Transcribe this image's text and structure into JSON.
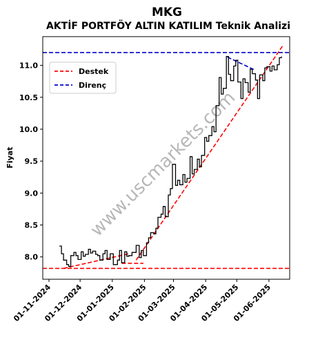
{
  "chart_data": {
    "type": "line",
    "title": "MKG",
    "subtitle": "AKTİF PORTFÖY ALTIN KATILIM Teknik Analizi",
    "xlabel": "",
    "ylabel": "Fiyat",
    "ylim": [
      7.65,
      11.45
    ],
    "xlim": [
      "2024-10-26",
      "2025-06-21"
    ],
    "grid": false,
    "legend_position": "upper-left",
    "watermark": "www.uscmarkets.com",
    "y_ticks": [
      "8.0",
      "8.5",
      "9.0",
      "9.5",
      "10.0",
      "10.5",
      "11.0"
    ],
    "y_tick_values": [
      8.0,
      8.5,
      9.0,
      9.5,
      10.0,
      10.5,
      11.0
    ],
    "x_ticks": [
      "01-11-2024",
      "01-12-2024",
      "01-01-2025",
      "01-02-2025",
      "01-03-2025",
      "01-04-2025",
      "01-05-2025",
      "01-06-2025"
    ],
    "x_tick_dates": [
      "2024-11-01",
      "2024-12-01",
      "2025-01-01",
      "2025-02-01",
      "2025-03-01",
      "2025-04-01",
      "2025-05-01",
      "2025-06-01"
    ],
    "series": [
      {
        "name": "",
        "color": "#000000",
        "x": [
          "2024-11-11",
          "2024-11-13",
          "2024-11-15",
          "2024-11-18",
          "2024-11-20",
          "2024-11-22",
          "2024-11-25",
          "2024-11-27",
          "2024-11-29",
          "2024-12-02",
          "2024-12-04",
          "2024-12-06",
          "2024-12-09",
          "2024-12-11",
          "2024-12-13",
          "2024-12-16",
          "2024-12-18",
          "2024-12-20",
          "2024-12-23",
          "2024-12-25",
          "2024-12-27",
          "2024-12-30",
          "2025-01-02",
          "2025-01-06",
          "2025-01-08",
          "2025-01-10",
          "2025-01-13",
          "2025-01-15",
          "2025-01-17",
          "2025-01-20",
          "2025-01-22",
          "2025-01-24",
          "2025-01-27",
          "2025-01-29",
          "2025-01-31",
          "2025-02-03",
          "2025-02-05",
          "2025-02-07",
          "2025-02-10",
          "2025-02-12",
          "2025-02-14",
          "2025-02-17",
          "2025-02-19",
          "2025-02-21",
          "2025-02-24",
          "2025-02-26",
          "2025-02-28",
          "2025-03-03",
          "2025-03-05",
          "2025-03-07",
          "2025-03-10",
          "2025-03-12",
          "2025-03-14",
          "2025-03-17",
          "2025-03-19",
          "2025-03-21",
          "2025-03-24",
          "2025-03-26",
          "2025-03-28",
          "2025-03-31",
          "2025-04-02",
          "2025-04-04",
          "2025-04-07",
          "2025-04-09",
          "2025-04-11",
          "2025-04-14",
          "2025-04-16",
          "2025-04-18",
          "2025-04-21",
          "2025-04-23",
          "2025-04-25",
          "2025-04-28",
          "2025-04-30",
          "2025-05-02",
          "2025-05-05",
          "2025-05-07",
          "2025-05-09",
          "2025-05-12",
          "2025-05-14",
          "2025-05-16",
          "2025-05-19",
          "2025-05-21",
          "2025-05-23",
          "2025-05-26",
          "2025-05-28",
          "2025-05-30",
          "2025-06-02",
          "2025-06-04",
          "2025-06-06",
          "2025-06-09",
          "2025-06-11",
          "2025-06-13"
        ],
        "y": [
          8.17,
          8.05,
          7.95,
          7.88,
          7.85,
          8.02,
          8.07,
          8.02,
          7.96,
          8.08,
          8.01,
          8.04,
          8.12,
          8.06,
          8.09,
          8.04,
          8.02,
          7.95,
          8.05,
          8.1,
          7.96,
          8.05,
          7.88,
          7.95,
          8.1,
          7.91,
          8.08,
          8.01,
          8.02,
          8.07,
          8.07,
          8.18,
          7.99,
          8.1,
          8.02,
          8.22,
          8.3,
          8.38,
          8.36,
          8.45,
          8.62,
          8.67,
          8.79,
          8.63,
          8.97,
          9.07,
          9.45,
          9.12,
          9.2,
          9.13,
          9.29,
          9.17,
          9.23,
          9.57,
          9.3,
          9.37,
          9.53,
          9.41,
          9.59,
          9.87,
          9.81,
          9.9,
          10.04,
          9.96,
          10.37,
          10.81,
          10.55,
          10.64,
          11.14,
          10.86,
          10.76,
          10.99,
          11.08,
          10.74,
          10.48,
          10.79,
          10.73,
          10.58,
          10.94,
          10.87,
          10.77,
          10.48,
          10.85,
          10.76,
          10.96,
          10.98,
          10.91,
          10.99,
          10.93,
          11.01,
          11.12,
          11.14
        ]
      }
    ],
    "support": {
      "name": "Destek",
      "color": "#ff0000",
      "horizontal": 7.82,
      "segments": [
        {
          "x": [
            "2024-11-15",
            "2025-01-17"
          ],
          "y": [
            7.82,
            8.05
          ]
        },
        {
          "x": [
            "2025-01-10",
            "2025-01-31"
          ],
          "y": [
            7.9,
            7.9
          ]
        },
        {
          "x": [
            "2025-01-24",
            "2025-06-14"
          ],
          "y": [
            7.95,
            11.3
          ]
        }
      ]
    },
    "resistance": {
      "name": "Direnç",
      "color": "#0000cd",
      "horizontal": 11.2,
      "segments": [
        {
          "x": [
            "2025-04-22",
            "2025-05-18"
          ],
          "y": [
            11.13,
            10.93
          ]
        }
      ]
    }
  }
}
